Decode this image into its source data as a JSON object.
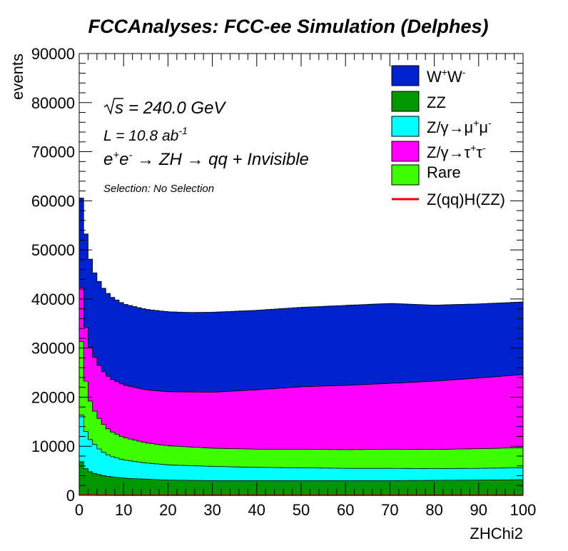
{
  "chart_data": {
    "type": "area",
    "stacked": true,
    "title": "FCCAnalyses: FCC-ee Simulation (Delphes)",
    "xlabel": "ZHChi2",
    "ylabel": "events",
    "xlim": [
      0,
      100
    ],
    "ylim": [
      0,
      90000
    ],
    "x_ticks": [
      "0",
      "10",
      "20",
      "30",
      "40",
      "50",
      "60",
      "70",
      "80",
      "90",
      "100"
    ],
    "y_ticks": [
      "0",
      "10000",
      "20000",
      "30000",
      "40000",
      "50000",
      "60000",
      "70000",
      "80000",
      "90000"
    ],
    "annotations": {
      "sqrt_s": {
        "value": "= 240.0 GeV"
      },
      "lumi": {
        "value": "L = 10.8 ab"
      },
      "process": "e+e- → ZH → qq + Invisible",
      "selection": "Selection: No Selection"
    },
    "legend": {
      "position": "top-right",
      "entries": [
        {
          "label": "W+W-",
          "color": "#0022cc"
        },
        {
          "label": "ZZ",
          "color": "#009600"
        },
        {
          "label": "Z/γ→μ+μ-",
          "color": "#00ffff"
        },
        {
          "label": "Z/γ→τ+τ-",
          "color": "#ff00ff"
        },
        {
          "label": "Rare",
          "color": "#3dff00"
        },
        {
          "label": "Z(qq)H(ZZ)",
          "color": "#ee0000"
        }
      ]
    },
    "x": [
      0,
      1,
      2,
      3,
      5,
      7,
      10,
      15,
      20,
      25,
      30,
      40,
      50,
      60,
      70,
      80,
      90,
      100
    ],
    "series": [
      {
        "name": "ZZ",
        "color": "#009600",
        "values": [
          7800,
          5900,
          5000,
          4600,
          4100,
          3800,
          3500,
          3300,
          3100,
          3050,
          3000,
          3000,
          3000,
          3000,
          3000,
          3050,
          3100,
          3200
        ]
      },
      {
        "name": "Z/γ→μ+μ-",
        "color": "#00ffff",
        "values": [
          10800,
          8200,
          6900,
          6200,
          4900,
          4200,
          3700,
          3300,
          3100,
          3000,
          2900,
          2700,
          2600,
          2500,
          2500,
          2400,
          2400,
          2400
        ]
      },
      {
        "name": "Rare",
        "color": "#3dff00",
        "values": [
          18000,
          11900,
          8600,
          7100,
          5900,
          5100,
          4600,
          4100,
          3900,
          3800,
          3700,
          3700,
          3800,
          3800,
          3900,
          3900,
          4000,
          4100
        ]
      },
      {
        "name": "Z/γ→τ+τ-",
        "color": "#ff00ff",
        "values": [
          11000,
          11000,
          11000,
          11000,
          10700,
          10700,
          10700,
          10800,
          11000,
          11200,
          11400,
          12100,
          12700,
          13100,
          13400,
          13900,
          14400,
          14900
        ]
      },
      {
        "name": "W+W-",
        "color": "#0022cc",
        "values": [
          17000,
          19500,
          18500,
          17300,
          17100,
          16800,
          16500,
          16400,
          16300,
          16200,
          16300,
          16200,
          16200,
          16300,
          16300,
          15500,
          15100,
          14800
        ]
      },
      {
        "name": "Z(qq)H(ZZ)",
        "color": "#ee0000",
        "values": [
          100,
          90,
          80,
          70,
          60,
          50,
          40,
          30,
          30,
          30,
          30,
          30,
          30,
          30,
          30,
          30,
          30,
          30
        ]
      }
    ]
  }
}
